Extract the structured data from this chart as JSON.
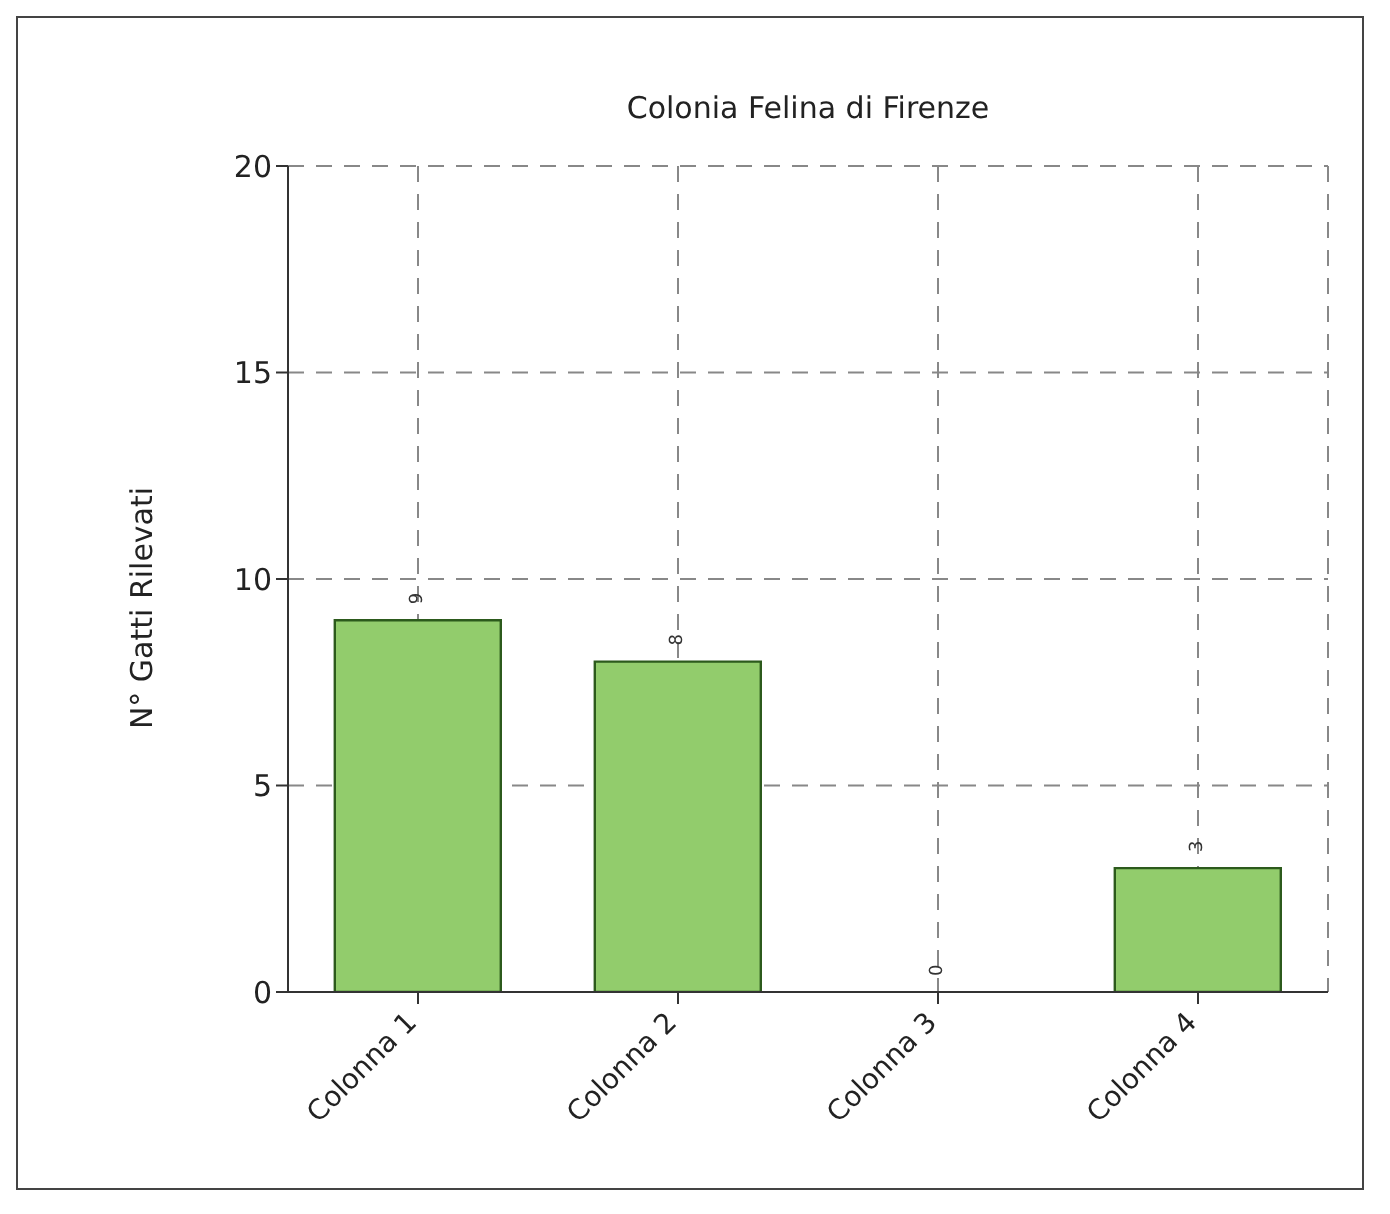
{
  "chart_data": {
    "type": "bar",
    "title": "Colonia Felina di Firenze",
    "ylabel": "N° Gatti Rilevati",
    "categories": [
      "Colonna 1",
      "Colonna 2",
      "Colonna 3",
      "Colonna 4"
    ],
    "values": [
      9,
      8,
      0,
      3
    ],
    "color": "#92cc6c",
    "ylim": [
      0,
      20
    ],
    "yticks": [
      0,
      5,
      10,
      15,
      20
    ],
    "grid": true,
    "data_labels": true,
    "legend": false
  }
}
